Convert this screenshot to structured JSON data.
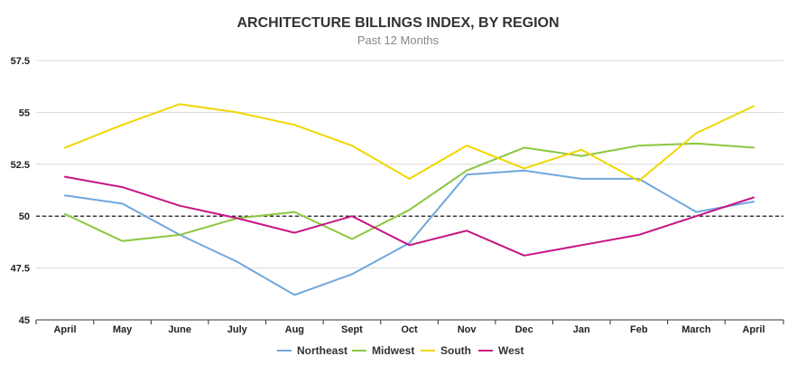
{
  "chart_data": {
    "type": "line",
    "title": "ARCHITECTURE BILLINGS INDEX, BY REGION",
    "subtitle": "Past 12 Months",
    "xlabel": "",
    "ylabel": "",
    "categories": [
      "April",
      "May",
      "June",
      "July",
      "Aug",
      "Sept",
      "Oct",
      "Nov",
      "Dec",
      "Jan",
      "Feb",
      "March",
      "April"
    ],
    "yticks": [
      "45",
      "47.5",
      "50",
      "52.5",
      "55",
      "57.5"
    ],
    "ylim": [
      45,
      57.5
    ],
    "reference_line": 50,
    "grid": true,
    "legend_position": "bottom",
    "series": [
      {
        "name": "Northeast",
        "color": "#6fa8dc",
        "values": [
          51.0,
          50.6,
          49.1,
          47.8,
          46.2,
          47.2,
          48.7,
          52.0,
          52.2,
          51.8,
          51.8,
          50.2,
          50.7
        ]
      },
      {
        "name": "Midwest",
        "color": "#8cc63f",
        "values": [
          50.1,
          48.8,
          49.1,
          49.9,
          50.2,
          48.9,
          50.3,
          52.2,
          53.3,
          52.9,
          53.4,
          53.5,
          53.3
        ]
      },
      {
        "name": "South",
        "color": "#f2d600",
        "values": [
          53.3,
          54.4,
          55.4,
          55.0,
          54.4,
          53.4,
          51.8,
          53.4,
          52.3,
          53.2,
          51.7,
          54.0,
          55.3
        ]
      },
      {
        "name": "West",
        "color": "#c71585",
        "values": [
          51.9,
          51.4,
          50.5,
          49.9,
          49.2,
          50.0,
          48.6,
          49.3,
          48.1,
          48.6,
          49.1,
          50.0,
          50.9
        ]
      }
    ]
  }
}
